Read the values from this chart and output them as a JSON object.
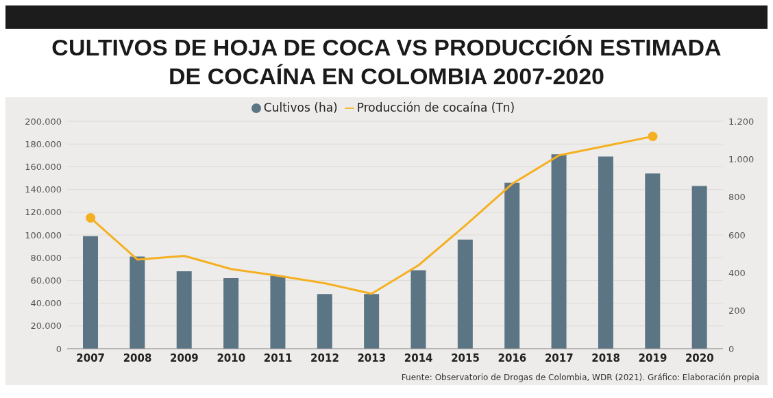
{
  "chart_data": {
    "type": "bar",
    "title": "CULTIVOS DE HOJA DE COCA VS PRODUCCIÓN ESTIMADA DE COCAÍNA EN COLOMBIA 2007-2020",
    "categories": [
      "2007",
      "2008",
      "2009",
      "2010",
      "2011",
      "2012",
      "2013",
      "2014",
      "2015",
      "2016",
      "2017",
      "2018",
      "2019",
      "2020"
    ],
    "series": [
      {
        "name": "Cultivos (ha)",
        "color": "#5b7585",
        "values": [
          99000,
          81000,
          68000,
          62000,
          64000,
          48000,
          48000,
          69000,
          96000,
          146000,
          171000,
          169000,
          154000,
          143000
        ]
      },
      {
        "name": "Producción de cocaína (Tn)",
        "type": "line",
        "axis": "y2",
        "color": "#f5b022",
        "values": [
          690,
          470,
          490,
          420,
          385,
          345,
          290,
          440,
          650,
          870,
          1020,
          1070,
          1120,
          null
        ]
      }
    ],
    "ylim": [
      0,
      200000
    ],
    "yticks": [
      0,
      {
        "value": 20000,
        "label": "20.000"
      },
      {
        "value": 40000,
        "label": "40.000"
      },
      {
        "value": 60000,
        "label": "60.000"
      },
      {
        "value": 80000,
        "label": "80.000"
      },
      {
        "value": 100000,
        "label": "100.000"
      },
      {
        "value": 120000,
        "label": "120.000"
      },
      {
        "value": 140000,
        "label": "140.000"
      },
      {
        "value": 160000,
        "label": "160.000"
      },
      {
        "value": 180000,
        "label": "180.000"
      },
      {
        "value": 200000,
        "label": "200.000"
      }
    ],
    "y2lim": [
      0,
      1200
    ],
    "y2ticks": [
      0,
      200,
      400,
      600,
      800,
      {
        "value": 1000,
        "label": "1.000"
      },
      {
        "value": 1200,
        "label": "1.200"
      }
    ],
    "grid": "y",
    "legend": "top",
    "line_style": "solid",
    "annotations": [
      "Fuente: Observatorio de Drogas de Colombia, WDR (2021). Gráfico: Elaboración propia"
    ]
  }
}
